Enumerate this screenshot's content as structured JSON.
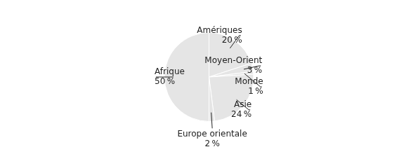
{
  "chart_data": {
    "type": "pie",
    "categories": [
      "Amériques",
      "Moyen-Orient",
      "Monde",
      "Asie",
      "Europe orientale",
      "Afrique"
    ],
    "values": [
      20,
      3,
      1,
      24,
      2,
      50
    ],
    "value_labels": [
      "20 %",
      "3 %",
      "1 %",
      "24 %",
      "2 %",
      "50 %"
    ],
    "data_labels": true
  }
}
